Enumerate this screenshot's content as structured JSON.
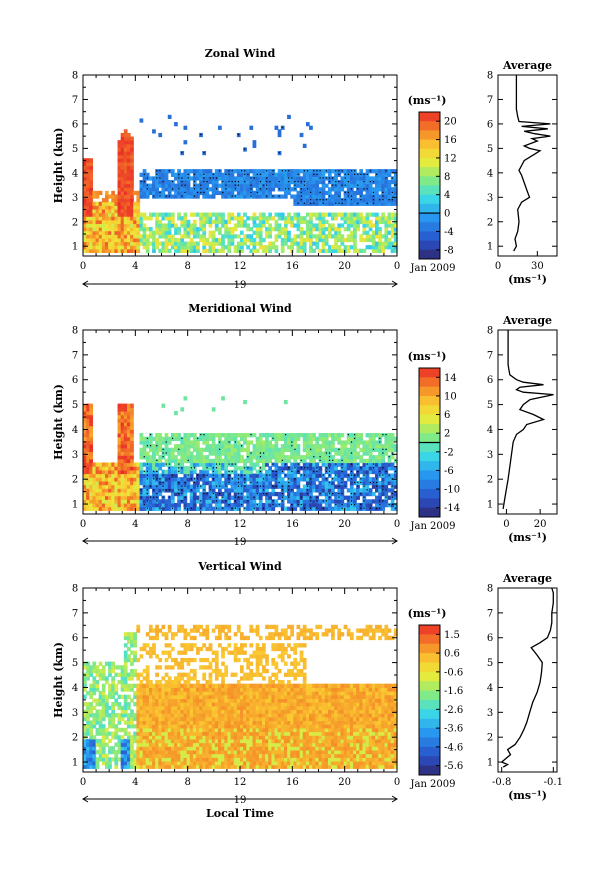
{
  "chart_data": [
    {
      "type": "heatmap",
      "title": "Zonal Wind",
      "ylabel": "Height (km)",
      "xlim": [
        0,
        24
      ],
      "ylim": [
        0.6,
        8
      ],
      "x_ticks": [
        "0",
        "4",
        "8",
        "12",
        "16",
        "20",
        "0"
      ],
      "y_ticks": [
        "1",
        "2",
        "3",
        "4",
        "5",
        "6",
        "7",
        "8"
      ],
      "day_label": "19",
      "date_label": "Jan 2009",
      "units": "(ms⁻¹)",
      "colorbar_ticks": [
        "20",
        "16",
        "12",
        "8",
        "4",
        "0",
        "-4",
        "-8"
      ],
      "colorbar_range": [
        -10,
        22
      ],
      "zero_line": 0,
      "profile": {
        "title": "Average",
        "xlabel": "(ms⁻¹)",
        "x_ticks": [
          "0",
          "30"
        ],
        "xlim": [
          0,
          45
        ],
        "height": [
          0.8,
          1.0,
          1.3,
          1.6,
          2.0,
          2.5,
          2.8,
          3.0,
          3.3,
          3.6,
          3.9,
          4.1,
          4.3,
          4.5,
          4.7,
          4.9,
          5.0,
          5.1,
          5.3,
          5.4,
          5.5,
          5.6,
          5.7,
          5.8,
          5.9,
          6.0,
          6.1,
          6.3,
          6.6,
          7.0,
          7.5,
          8.0
        ],
        "value": [
          12,
          14,
          13,
          15,
          16,
          15,
          18,
          24,
          22,
          20,
          18,
          16,
          18,
          20,
          26,
          32,
          24,
          20,
          30,
          26,
          40,
          28,
          20,
          38,
          18,
          40,
          16,
          15,
          14,
          14,
          14,
          14
        ]
      }
    },
    {
      "type": "heatmap",
      "title": "Meridional Wind",
      "ylabel": "Height (km)",
      "xlim": [
        0,
        24
      ],
      "ylim": [
        0.6,
        8
      ],
      "x_ticks": [
        "0",
        "4",
        "8",
        "12",
        "16",
        "20",
        "0"
      ],
      "y_ticks": [
        "1",
        "2",
        "3",
        "4",
        "5",
        "6",
        "7",
        "8"
      ],
      "day_label": "19",
      "date_label": "Jan 2009",
      "units": "(ms⁻¹)",
      "colorbar_ticks": [
        "14",
        "10",
        "6",
        "2",
        "-2",
        "-6",
        "-10",
        "-14"
      ],
      "colorbar_range": [
        -16,
        16
      ],
      "zero_line": 0,
      "profile": {
        "title": "Average",
        "xlabel": "(ms⁻¹)",
        "x_ticks": [
          "0",
          "20"
        ],
        "xlim": [
          -5,
          30
        ],
        "height": [
          0.8,
          1.2,
          1.6,
          2.0,
          2.5,
          3.0,
          3.5,
          3.8,
          4.0,
          4.2,
          4.4,
          4.6,
          4.8,
          5.0,
          5.2,
          5.4,
          5.5,
          5.6,
          5.7,
          5.8,
          5.9,
          6.0,
          6.2,
          6.6,
          7.0,
          7.5,
          8.0
        ],
        "value": [
          -2,
          -1,
          0,
          1,
          2,
          3,
          4,
          6,
          10,
          12,
          22,
          16,
          8,
          10,
          14,
          28,
          10,
          6,
          8,
          22,
          10,
          6,
          2,
          1,
          1,
          1,
          1
        ]
      }
    },
    {
      "type": "heatmap",
      "title": "Vertical Wind",
      "xlabel": "Local Time",
      "ylabel": "Height (km)",
      "xlim": [
        0,
        24
      ],
      "ylim": [
        0.6,
        8
      ],
      "x_ticks": [
        "0",
        "4",
        "8",
        "12",
        "16",
        "20",
        "0"
      ],
      "y_ticks": [
        "1",
        "2",
        "3",
        "4",
        "5",
        "6",
        "7",
        "8"
      ],
      "day_label": "19",
      "date_label": "Jan 2009",
      "units": "(ms⁻¹)",
      "colorbar_ticks": [
        "1.5",
        "0.6",
        "-0.6",
        "-1.6",
        "-2.6",
        "-3.6",
        "-4.6",
        "-5.6"
      ],
      "colorbar_range": [
        -6.2,
        2.2
      ],
      "profile": {
        "title": "Average",
        "xlabel": "(ms⁻¹)",
        "x_ticks": [
          "-0.8",
          "-0.1"
        ],
        "xlim": [
          -0.85,
          -0.05
        ],
        "height": [
          0.8,
          0.9,
          1.0,
          1.1,
          1.3,
          1.5,
          1.7,
          2.0,
          2.3,
          2.6,
          3.0,
          3.4,
          3.8,
          4.2,
          4.6,
          5.0,
          5.3,
          5.6,
          5.8,
          6.0,
          6.3,
          6.6,
          7.0,
          7.4,
          7.8,
          8.0
        ],
        "value": [
          -0.78,
          -0.72,
          -0.8,
          -0.76,
          -0.68,
          -0.72,
          -0.62,
          -0.55,
          -0.5,
          -0.46,
          -0.42,
          -0.38,
          -0.32,
          -0.28,
          -0.26,
          -0.25,
          -0.32,
          -0.4,
          -0.28,
          -0.18,
          -0.14,
          -0.12,
          -0.12,
          -0.1,
          -0.1,
          -0.12
        ]
      }
    }
  ]
}
